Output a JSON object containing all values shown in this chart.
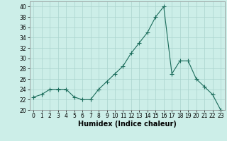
{
  "x": [
    0,
    1,
    2,
    3,
    4,
    5,
    6,
    7,
    8,
    9,
    10,
    11,
    12,
    13,
    14,
    15,
    16,
    17,
    18,
    19,
    20,
    21,
    22,
    23
  ],
  "y": [
    22.5,
    23.0,
    24.0,
    24.0,
    24.0,
    22.5,
    22.0,
    22.0,
    24.0,
    25.5,
    27.0,
    28.5,
    31.0,
    33.0,
    35.0,
    38.0,
    40.0,
    27.0,
    29.5,
    29.5,
    26.0,
    24.5,
    23.0,
    20.0
  ],
  "line_color": "#1a6b5a",
  "marker": "+",
  "marker_size": 4,
  "bg_color": "#cceee8",
  "grid_color": "#aad4ce",
  "xlabel": "Humidex (Indice chaleur)",
  "xlim": [
    -0.5,
    23.5
  ],
  "ylim": [
    20,
    41
  ],
  "yticks": [
    20,
    22,
    24,
    26,
    28,
    30,
    32,
    34,
    36,
    38,
    40
  ],
  "xticks": [
    0,
    1,
    2,
    3,
    4,
    5,
    6,
    7,
    8,
    9,
    10,
    11,
    12,
    13,
    14,
    15,
    16,
    17,
    18,
    19,
    20,
    21,
    22,
    23
  ],
  "tick_fontsize": 5.5,
  "label_fontsize": 7.0
}
